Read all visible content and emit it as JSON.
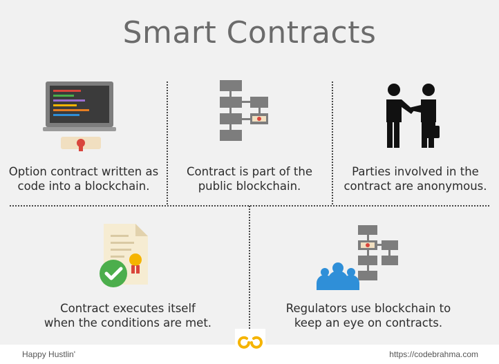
{
  "title": "Smart Contracts",
  "cells": [
    {
      "caption_line1": "Option contract written as",
      "caption_line2": "code into a blockchain.",
      "icon": "laptop-code-icon"
    },
    {
      "caption_line1": "Contract is part of the",
      "caption_line2": "public blockchain.",
      "icon": "blockchain-icon"
    },
    {
      "caption_line1": "Parties involved in the",
      "caption_line2": "contract are anonymous.",
      "icon": "handshake-icon"
    },
    {
      "caption_line1": "Contract executes itself",
      "caption_line2": "when the conditions are met.",
      "icon": "certificate-check-icon"
    },
    {
      "caption_line1": "Regulators use blockchain to",
      "caption_line2": "keep an eye on contracts.",
      "icon": "regulators-icon"
    }
  ],
  "footer": {
    "left": "Happy Hustlin'",
    "right": "https://codebrahma.com"
  },
  "colors": {
    "background": "#f1f1f1",
    "title": "#6b6b6b",
    "block": "#7d7d7d",
    "seal": "#d9453b",
    "check": "#4cae4c",
    "people": "#2f8fd8",
    "logo": "#f5b400"
  }
}
